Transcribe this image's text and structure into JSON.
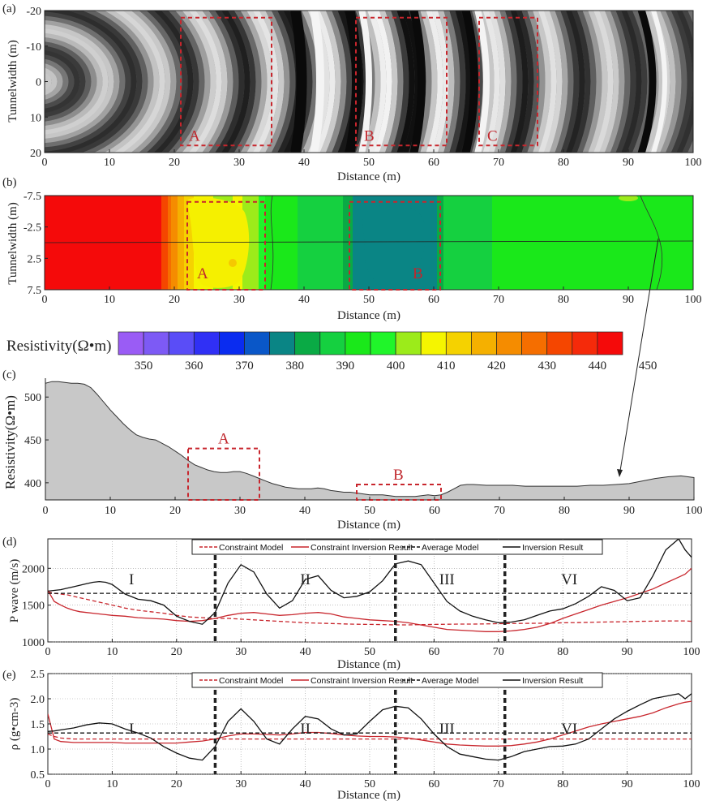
{
  "chart_data": [
    {
      "panel": "(a)",
      "type": "heatmap",
      "description_kind": "seismic wavefield image (grayscale)",
      "xlabel": "Distance (m)",
      "ylabel": "Tunnelwidth (m)",
      "xlim": [
        0,
        100
      ],
      "ylim": [
        -20,
        20
      ],
      "xticks": [
        "0",
        "10",
        "20",
        "30",
        "40",
        "50",
        "60",
        "70",
        "80",
        "90",
        "100"
      ],
      "yticks": [
        "-20",
        "-10",
        "0",
        "10",
        "20"
      ],
      "boxes": [
        {
          "label": "A",
          "x0": 21,
          "x1": 35,
          "y0": -18,
          "y1": 18
        },
        {
          "label": "B",
          "x0": 48,
          "x1": 62,
          "y0": -18,
          "y1": 18
        },
        {
          "label": "C",
          "x0": 67,
          "x1": 76,
          "y0": -18,
          "y1": 18
        }
      ]
    },
    {
      "panel": "(b)",
      "type": "heatmap",
      "xlabel": "Distance (m)",
      "ylabel": "Tunnelwidth (m)",
      "xlim": [
        0,
        100
      ],
      "ylim": [
        -7.5,
        7.5
      ],
      "xticks": [
        "0",
        "10",
        "20",
        "30",
        "40",
        "50",
        "60",
        "70",
        "80",
        "90",
        "100"
      ],
      "yticks": [
        "-7.5",
        "-2.5",
        "2.5",
        "7.5"
      ],
      "profile_line_y": 0,
      "boxes": [
        {
          "label": "A",
          "x0": 22,
          "x1": 34,
          "y0": -6.5,
          "y1": 7.5
        },
        {
          "label": "B",
          "x0": 47,
          "x1": 61,
          "y0": -6.5,
          "y1": 7.5
        }
      ],
      "resistivity_profile_x": [
        0,
        17,
        18,
        19,
        20,
        21,
        22,
        24,
        26,
        28,
        30,
        32,
        33,
        34,
        35,
        40,
        45,
        46,
        47,
        48,
        60,
        61,
        62,
        70,
        80,
        90,
        100
      ],
      "resistivity_profile_v": [
        470,
        470,
        455,
        445,
        438,
        432,
        426,
        420,
        417,
        417,
        418,
        414,
        410,
        404,
        400,
        398,
        396,
        392,
        386,
        384,
        384,
        390,
        396,
        399,
        399,
        400,
        402
      ]
    },
    {
      "panel": "colorbar",
      "type": "colorbar",
      "label": "Resistivity(Ω•m)",
      "tick_labels": [
        "350",
        "360",
        "370",
        "380",
        "390",
        "400",
        "410",
        "420",
        "430",
        "440",
        "450"
      ],
      "colors": [
        "#9a5cf5",
        "#7d5af5",
        "#5a4df7",
        "#3030f5",
        "#0a2cf0",
        "#0a57c8",
        "#0a8585",
        "#0aaa45",
        "#15d040",
        "#1ae81a",
        "#20f52a",
        "#9ceb1a",
        "#f5f500",
        "#f5d200",
        "#f5b000",
        "#f58c00",
        "#f56e00",
        "#f54600",
        "#f52a0a",
        "#f50a0a"
      ]
    },
    {
      "panel": "(c)",
      "type": "area",
      "xlabel": "Distance (m)",
      "ylabel": "Resistivity(Ω•m)",
      "xlim": [
        0,
        100
      ],
      "ylim": [
        380,
        522
      ],
      "xticks": [
        "0",
        "10",
        "20",
        "30",
        "40",
        "50",
        "60",
        "70",
        "80",
        "90",
        "100"
      ],
      "yticks": [
        "400",
        "450",
        "500"
      ],
      "x": [
        0,
        1,
        2,
        3,
        4,
        5,
        6,
        7,
        8,
        9,
        10,
        11,
        12,
        13,
        14,
        15,
        16,
        17,
        18,
        19,
        20,
        21,
        22,
        23,
        24,
        25,
        26,
        27,
        28,
        29,
        30,
        31,
        32,
        33,
        34,
        35,
        36,
        37,
        38,
        39,
        40,
        41,
        42,
        43,
        44,
        45,
        46,
        47,
        48,
        49,
        50,
        51,
        52,
        53,
        54,
        55,
        56,
        57,
        58,
        59,
        60,
        61,
        62,
        63,
        64,
        65,
        66,
        68,
        70,
        72,
        74,
        76,
        78,
        80,
        82,
        84,
        86,
        88,
        90,
        92,
        94,
        96,
        98,
        100
      ],
      "y": [
        516,
        518,
        518,
        517,
        516,
        516,
        515,
        511,
        503,
        494,
        485,
        477,
        469,
        462,
        456,
        453,
        451,
        450,
        446,
        442,
        437,
        432,
        426,
        421,
        418,
        415,
        413,
        412,
        412,
        413,
        413,
        411,
        408,
        405,
        402,
        399,
        397,
        395,
        394,
        393,
        393,
        393,
        394,
        393,
        391,
        390,
        389,
        389,
        388,
        387,
        386,
        386,
        386,
        385,
        384,
        384,
        384,
        384,
        385,
        386,
        385,
        386,
        389,
        393,
        397,
        398,
        398,
        397,
        397,
        397,
        396,
        396,
        396,
        396,
        396,
        397,
        397,
        398,
        399,
        402,
        405,
        407,
        408,
        406
      ],
      "boxes": [
        {
          "label": "A",
          "x0": 22,
          "x1": 33,
          "y0": 380,
          "y1": 440
        },
        {
          "label": "B",
          "x0": 48,
          "x1": 61,
          "y0": 380,
          "y1": 398
        }
      ]
    },
    {
      "panel": "(d)",
      "type": "line",
      "xlabel": "Distance (m)",
      "ylabel": "P wave (m/s)",
      "xlim": [
        0,
        100
      ],
      "ylim": [
        1000,
        2400
      ],
      "xticks": [
        "0",
        "10",
        "20",
        "30",
        "40",
        "50",
        "60",
        "70",
        "80",
        "90",
        "100"
      ],
      "yticks": [
        "1000",
        "1500",
        "2000"
      ],
      "dividers": [
        26,
        54,
        71
      ],
      "zone_labels": [
        {
          "text": "I",
          "x": 13
        },
        {
          "text": "II",
          "x": 40
        },
        {
          "text": "III",
          "x": 62
        },
        {
          "text": "VI",
          "x": 81
        }
      ],
      "zone_label_y": 1850,
      "x": [
        0,
        1,
        2,
        3,
        4,
        5,
        6,
        7,
        8,
        9,
        10,
        12,
        14,
        16,
        18,
        20,
        22,
        24,
        26,
        28,
        30,
        32,
        34,
        36,
        38,
        40,
        42,
        44,
        46,
        48,
        50,
        52,
        54,
        56,
        58,
        60,
        62,
        64,
        66,
        68,
        70,
        72,
        74,
        76,
        78,
        80,
        82,
        84,
        86,
        88,
        90,
        92,
        94,
        96,
        98,
        99,
        100
      ],
      "series": [
        {
          "name": "Constraint Model",
          "style": "red-dashed",
          "y": [
            1680,
            1660,
            1650,
            1640,
            1620,
            1600,
            1580,
            1560,
            1540,
            1520,
            1500,
            1460,
            1430,
            1410,
            1390,
            1360,
            1340,
            1330,
            1320,
            1320,
            1310,
            1300,
            1290,
            1280,
            1270,
            1260,
            1255,
            1250,
            1245,
            1240,
            1238,
            1236,
            1232,
            1232,
            1235,
            1238,
            1240,
            1242,
            1243,
            1245,
            1248,
            1250,
            1252,
            1254,
            1256,
            1260,
            1262,
            1266,
            1270,
            1272,
            1276,
            1280,
            1282,
            1284,
            1286,
            1285,
            1280
          ]
        },
        {
          "name": "Constraint Inversion Result",
          "style": "red-solid",
          "y": [
            1700,
            1550,
            1500,
            1460,
            1430,
            1410,
            1400,
            1390,
            1380,
            1370,
            1360,
            1350,
            1330,
            1320,
            1310,
            1290,
            1280,
            1290,
            1320,
            1360,
            1390,
            1400,
            1380,
            1360,
            1370,
            1390,
            1400,
            1380,
            1340,
            1320,
            1300,
            1290,
            1280,
            1260,
            1230,
            1200,
            1170,
            1160,
            1150,
            1140,
            1140,
            1150,
            1170,
            1200,
            1250,
            1320,
            1380,
            1440,
            1500,
            1550,
            1600,
            1660,
            1720,
            1800,
            1880,
            1920,
            2000
          ]
        },
        {
          "name": "Average Model",
          "style": "black-dashed",
          "y": [
            1660,
            1660,
            1660,
            1660,
            1660,
            1660,
            1660,
            1660,
            1660,
            1660,
            1660,
            1660,
            1660,
            1660,
            1660,
            1660,
            1660,
            1660,
            1660,
            1660,
            1660,
            1660,
            1660,
            1660,
            1660,
            1660,
            1660,
            1660,
            1660,
            1660,
            1660,
            1660,
            1660,
            1660,
            1660,
            1660,
            1660,
            1660,
            1660,
            1660,
            1660,
            1660,
            1660,
            1660,
            1660,
            1660,
            1660,
            1660,
            1660,
            1660,
            1660,
            1660,
            1660,
            1660,
            1660,
            1660,
            1660
          ]
        },
        {
          "name": "Inversion Result",
          "style": "black-solid",
          "y": [
            1690,
            1700,
            1710,
            1730,
            1750,
            1770,
            1790,
            1810,
            1820,
            1810,
            1780,
            1650,
            1580,
            1560,
            1500,
            1350,
            1280,
            1240,
            1400,
            1800,
            2050,
            1950,
            1650,
            1460,
            1560,
            1850,
            1900,
            1700,
            1600,
            1620,
            1680,
            1830,
            2060,
            2100,
            2050,
            1800,
            1550,
            1420,
            1350,
            1300,
            1260,
            1270,
            1300,
            1360,
            1420,
            1450,
            1520,
            1620,
            1750,
            1700,
            1560,
            1600,
            1900,
            2250,
            2400,
            2250,
            2150
          ]
        }
      ]
    },
    {
      "panel": "(e)",
      "type": "line",
      "xlabel": "Distance (m)",
      "ylabel": "ρ (g•cm-3)",
      "xlim": [
        0,
        100
      ],
      "ylim": [
        0.5,
        2.5
      ],
      "xticks": [
        "0",
        "10",
        "20",
        "30",
        "40",
        "50",
        "60",
        "70",
        "80",
        "90",
        "100"
      ],
      "yticks": [
        "0.5",
        "1.0",
        "1.5",
        "2.0",
        "2.5"
      ],
      "dividers": [
        26,
        54,
        71
      ],
      "zone_labels": [
        {
          "text": "I",
          "x": 13
        },
        {
          "text": "II",
          "x": 40
        },
        {
          "text": "III",
          "x": 62
        },
        {
          "text": "VI",
          "x": 81
        }
      ],
      "zone_label_y": 1.4,
      "x": [
        0,
        1,
        2,
        4,
        6,
        8,
        10,
        12,
        14,
        16,
        18,
        20,
        22,
        24,
        26,
        28,
        30,
        32,
        34,
        36,
        38,
        40,
        42,
        44,
        46,
        48,
        50,
        52,
        54,
        56,
        58,
        60,
        62,
        64,
        66,
        68,
        70,
        72,
        74,
        76,
        78,
        80,
        82,
        84,
        86,
        88,
        90,
        92,
        94,
        96,
        98,
        99,
        100
      ],
      "series": [
        {
          "name": "Constraint Model",
          "style": "red-dashed",
          "y": [
            1.3,
            1.25,
            1.22,
            1.2,
            1.2,
            1.2,
            1.2,
            1.2,
            1.2,
            1.2,
            1.2,
            1.2,
            1.2,
            1.2,
            1.2,
            1.2,
            1.2,
            1.2,
            1.2,
            1.2,
            1.2,
            1.2,
            1.2,
            1.2,
            1.2,
            1.2,
            1.2,
            1.2,
            1.2,
            1.2,
            1.2,
            1.2,
            1.2,
            1.2,
            1.2,
            1.2,
            1.2,
            1.2,
            1.2,
            1.2,
            1.2,
            1.2,
            1.2,
            1.2,
            1.2,
            1.2,
            1.2,
            1.2,
            1.2,
            1.2,
            1.2,
            1.2,
            1.2
          ]
        },
        {
          "name": "Constraint Inversion Result",
          "style": "red-solid",
          "y": [
            1.7,
            1.2,
            1.15,
            1.13,
            1.13,
            1.13,
            1.13,
            1.12,
            1.12,
            1.12,
            1.12,
            1.12,
            1.14,
            1.16,
            1.2,
            1.26,
            1.3,
            1.3,
            1.29,
            1.28,
            1.3,
            1.33,
            1.33,
            1.31,
            1.28,
            1.26,
            1.25,
            1.25,
            1.24,
            1.22,
            1.18,
            1.14,
            1.1,
            1.08,
            1.07,
            1.06,
            1.06,
            1.07,
            1.1,
            1.14,
            1.2,
            1.28,
            1.36,
            1.44,
            1.5,
            1.55,
            1.6,
            1.65,
            1.72,
            1.82,
            1.9,
            1.93,
            1.95
          ]
        },
        {
          "name": "Average Model",
          "style": "black-dashed",
          "y": [
            1.32,
            1.32,
            1.32,
            1.32,
            1.32,
            1.32,
            1.32,
            1.32,
            1.32,
            1.32,
            1.32,
            1.32,
            1.32,
            1.32,
            1.32,
            1.32,
            1.32,
            1.32,
            1.32,
            1.32,
            1.32,
            1.32,
            1.32,
            1.32,
            1.32,
            1.32,
            1.32,
            1.32,
            1.32,
            1.32,
            1.32,
            1.32,
            1.32,
            1.32,
            1.32,
            1.32,
            1.32,
            1.32,
            1.32,
            1.32,
            1.32,
            1.32,
            1.32,
            1.32,
            1.32,
            1.32,
            1.32,
            1.32,
            1.32,
            1.32,
            1.32,
            1.32,
            1.32
          ]
        },
        {
          "name": "Inversion Result",
          "style": "black-solid",
          "y": [
            1.35,
            1.36,
            1.38,
            1.42,
            1.48,
            1.52,
            1.5,
            1.4,
            1.32,
            1.22,
            1.05,
            0.92,
            0.82,
            0.78,
            1.05,
            1.55,
            1.8,
            1.55,
            1.2,
            1.1,
            1.4,
            1.65,
            1.6,
            1.4,
            1.28,
            1.3,
            1.55,
            1.78,
            1.85,
            1.82,
            1.6,
            1.3,
            1.05,
            0.9,
            0.85,
            0.8,
            0.78,
            0.85,
            0.95,
            1.0,
            1.05,
            1.06,
            1.1,
            1.2,
            1.4,
            1.6,
            1.75,
            1.88,
            2.0,
            2.05,
            2.1,
            2.0,
            2.1
          ]
        }
      ]
    }
  ]
}
